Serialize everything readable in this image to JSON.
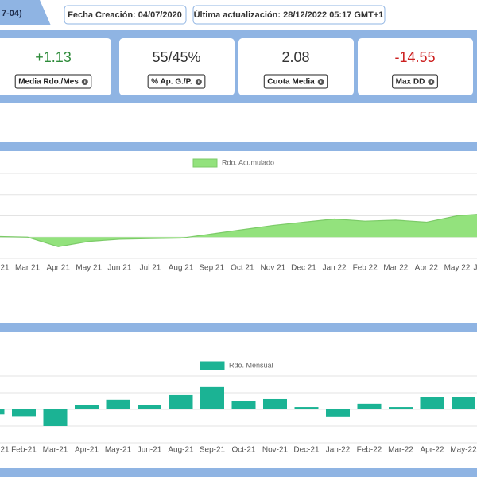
{
  "header": {
    "tab": "7-04)",
    "created": "Fecha Creación: 04/07/2020",
    "updated": "Última actualización: 28/12/2022 05:17 GMT+1"
  },
  "stats": [
    {
      "value": "+1.13",
      "label": "Media Rdo./Mes",
      "color": "#2e8b3a"
    },
    {
      "value": "55/45%",
      "label": "% Ap. G./P.",
      "color": "#333333"
    },
    {
      "value": "2.08",
      "label": "Cuota Media",
      "color": "#333333"
    },
    {
      "value": "-14.55",
      "label": "Max DD",
      "color": "#cc1f1f"
    }
  ],
  "charts": [
    {
      "type": "area",
      "legend": "Rdo. Acumulado",
      "color": "#93e27d",
      "stroke": "#7ccb68",
      "categories": [
        "21",
        "Mar 21",
        "Apr 21",
        "May 21",
        "Jun 21",
        "Jul 21",
        "Aug 21",
        "Sep 21",
        "Oct 21",
        "Nov 21",
        "Dec 21",
        "Jan 22",
        "Feb 22",
        "Mar 22",
        "Apr 22",
        "May 22",
        "J"
      ],
      "values": [
        0.3,
        0,
        -4.5,
        -2,
        -1,
        -0.7,
        -0.5,
        1.5,
        3.5,
        5.5,
        7,
        8.5,
        7.5,
        8,
        7,
        10,
        11
      ],
      "ylim": [
        -10,
        30
      ],
      "gridlines": [
        -10,
        0,
        10,
        20,
        30
      ]
    },
    {
      "type": "bar",
      "legend": "Rdo. Mensual",
      "color": "#1bb394",
      "categories": [
        "21",
        "Feb-21",
        "Mar-21",
        "Apr-21",
        "May-21",
        "Jun-21",
        "Aug-21",
        "Sep-21",
        "Oct-21",
        "Nov-21",
        "Dec-21",
        "Jan-22",
        "Feb-22",
        "Mar-22",
        "Apr-22",
        "May-22"
      ],
      "values": [
        -1.5,
        -2,
        -5,
        1.2,
        2.9,
        1.2,
        4.3,
        6.7,
        2.4,
        3.1,
        0.7,
        -2.1,
        1.7,
        0.7,
        3.8,
        3.6
      ],
      "ylim": [
        -10,
        10
      ],
      "gridlines": [
        -10,
        -5,
        0,
        5,
        10
      ]
    }
  ]
}
